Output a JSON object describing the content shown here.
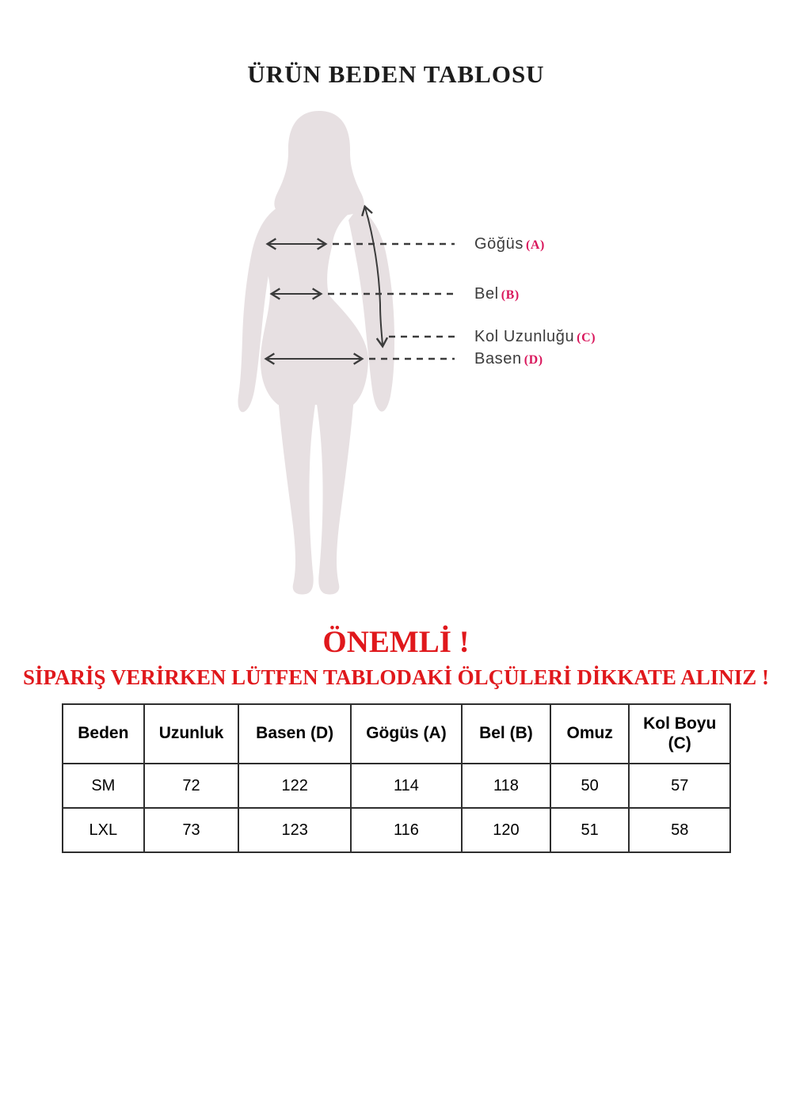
{
  "page": {
    "title": "ÜRÜN BEDEN TABLOSU"
  },
  "diagram": {
    "silhouette_color": "#e7e0e2",
    "line_color": "#3b3b3b",
    "code_color": "#d9175c",
    "labels": [
      {
        "text": "Göğüs",
        "code": "(A)"
      },
      {
        "text": "Bel",
        "code": "(B)"
      },
      {
        "text": "Kol Uzunluğu",
        "code": "(C)"
      },
      {
        "text": "Basen",
        "code": "(D)"
      }
    ]
  },
  "notice": {
    "heading": "ÖNEMLİ !",
    "warning": "SİPARİŞ VERİRKEN LÜTFEN TABLODAKİ ÖLÇÜLERİ DİKKATE ALINIZ !",
    "color": "#e0181c"
  },
  "size_table": {
    "headers": [
      "Beden",
      "Uzunluk",
      "Basen (D)",
      "Gögüs (A)",
      "Bel (B)",
      "Omuz",
      "Kol Boyu (C)"
    ],
    "rows": [
      [
        "SM",
        "72",
        "122",
        "114",
        "118",
        "50",
        "57"
      ],
      [
        "LXL",
        "73",
        "123",
        "116",
        "120",
        "51",
        "58"
      ]
    ]
  }
}
